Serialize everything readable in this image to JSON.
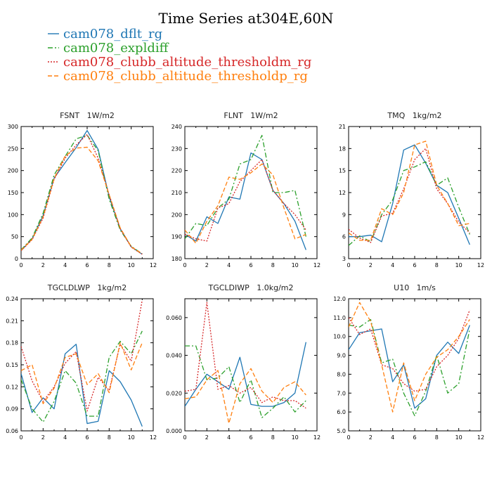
{
  "figure": {
    "title": "Time Series at304E,60N",
    "legend": [
      {
        "label": "cam078_dflt_rg",
        "color": "#1f77b4",
        "dash": "solid"
      },
      {
        "label": "cam078_expldiff",
        "color": "#2ca02c",
        "dash": "dashdot"
      },
      {
        "label": "cam078_clubb_altitude_thresholdm_rg",
        "color": "#d62728",
        "dash": "dotted"
      },
      {
        "label": "cam078_clubb_altitude_thresholdp_rg",
        "color": "#ff7f0e",
        "dash": "dashed"
      }
    ]
  },
  "chart_data": [
    {
      "type": "line",
      "title": "FSNT   1W/m2",
      "xlim": [
        0,
        12
      ],
      "xticks": [
        0,
        2,
        4,
        6,
        8,
        10,
        12
      ],
      "xtick_labels": [
        "0",
        "2",
        "4",
        "6",
        "8",
        "10",
        "12"
      ],
      "ylim": [
        0,
        300
      ],
      "yticks": [
        0,
        50,
        100,
        150,
        200,
        250,
        300
      ],
      "ytick_labels": [
        "0",
        "50",
        "100",
        "150",
        "200",
        "250",
        "300"
      ],
      "x": [
        0,
        1,
        2,
        3,
        4,
        5,
        6,
        7,
        8,
        9,
        10,
        11
      ],
      "series": [
        {
          "name": "cam078_dflt_rg",
          "values": [
            18,
            45,
            98,
            183,
            218,
            252,
            291,
            248,
            140,
            68,
            27,
            10
          ]
        },
        {
          "name": "cam078_expldiff",
          "values": [
            20,
            47,
            103,
            190,
            232,
            272,
            280,
            245,
            135,
            65,
            28,
            11
          ]
        },
        {
          "name": "cam078_clubb_altitude_thresholdm_rg",
          "values": [
            18,
            43,
            92,
            180,
            228,
            258,
            282,
            228,
            145,
            68,
            26,
            10
          ]
        },
        {
          "name": "cam078_clubb_altitude_thresholdp_rg",
          "values": [
            19,
            44,
            95,
            182,
            233,
            251,
            253,
            222,
            145,
            70,
            27,
            11
          ]
        }
      ]
    },
    {
      "type": "line",
      "title": "FLNT   1W/m2",
      "xlim": [
        0,
        12
      ],
      "xticks": [
        0,
        2,
        4,
        6,
        8,
        10,
        12
      ],
      "xtick_labels": [
        "0",
        "2",
        "4",
        "6",
        "8",
        "10",
        "12"
      ],
      "ylim": [
        180,
        240
      ],
      "yticks": [
        180,
        190,
        200,
        210,
        220,
        230,
        240
      ],
      "ytick_labels": [
        "180",
        "190",
        "200",
        "210",
        "220",
        "230",
        "240"
      ],
      "x": [
        0,
        1,
        2,
        3,
        4,
        5,
        6,
        7,
        8,
        9,
        10,
        11
      ],
      "series": [
        {
          "name": "cam078_dflt_rg",
          "values": [
            191,
            188,
            199,
            196,
            208,
            207,
            228,
            225,
            211,
            205,
            197,
            184
          ]
        },
        {
          "name": "cam078_expldiff",
          "values": [
            189,
            196,
            195,
            203,
            207,
            223,
            225,
            236,
            210,
            210,
            211,
            190
          ]
        },
        {
          "name": "cam078_clubb_altitude_thresholdm_rg",
          "values": [
            191,
            189,
            188,
            203,
            205,
            215,
            220,
            225,
            211,
            205,
            200,
            193
          ]
        },
        {
          "name": "cam078_clubb_altitude_thresholdp_rg",
          "values": [
            193,
            187,
            197,
            204,
            217,
            216,
            219,
            223,
            218,
            203,
            189,
            191
          ]
        }
      ]
    },
    {
      "type": "line",
      "title": "TMQ   1kg/m2",
      "xlim": [
        0,
        12
      ],
      "xticks": [
        0,
        2,
        4,
        6,
        8,
        10,
        12
      ],
      "xtick_labels": [
        "0",
        "2",
        "4",
        "6",
        "8",
        "10",
        "12"
      ],
      "ylim": [
        3,
        21
      ],
      "yticks": [
        3,
        6,
        9,
        12,
        15,
        18,
        21
      ],
      "ytick_labels": [
        "3",
        "6",
        "9",
        "12",
        "15",
        "18",
        "21"
      ],
      "x": [
        0,
        1,
        2,
        3,
        4,
        5,
        6,
        7,
        8,
        9,
        10,
        11
      ],
      "series": [
        {
          "name": "cam078_dflt_rg",
          "values": [
            6.0,
            6.0,
            6.2,
            5.3,
            10.5,
            17.8,
            18.5,
            16.0,
            13.0,
            12.0,
            8.5,
            4.9
          ]
        },
        {
          "name": "cam078_expldiff",
          "values": [
            4.8,
            6.1,
            5.3,
            9.0,
            11.0,
            15.0,
            15.5,
            16.2,
            13.0,
            14.0,
            10.0,
            6.3
          ]
        },
        {
          "name": "cam078_clubb_altitude_thresholdm_rg",
          "values": [
            7.0,
            5.8,
            5.2,
            8.8,
            9.2,
            12.5,
            16.5,
            18.0,
            12.5,
            10.5,
            8.0,
            6.5
          ]
        },
        {
          "name": "cam078_clubb_altitude_thresholdp_rg",
          "values": [
            6.5,
            5.5,
            5.5,
            9.8,
            9.0,
            12.0,
            18.5,
            19.0,
            13.0,
            10.5,
            7.5,
            7.8
          ]
        }
      ]
    },
    {
      "type": "line",
      "title": "TGCLDLWP   1kg/m2",
      "xlim": [
        0,
        12
      ],
      "xticks": [
        0,
        2,
        4,
        6,
        8,
        10,
        12
      ],
      "xtick_labels": [
        "0",
        "2",
        "4",
        "6",
        "8",
        "10",
        "12"
      ],
      "ylim": [
        0.06,
        0.24
      ],
      "yticks": [
        0.06,
        0.09,
        0.12,
        0.15,
        0.18,
        0.21,
        0.24
      ],
      "ytick_labels": [
        "0.06",
        "0.09",
        "0.12",
        "0.15",
        "0.18",
        "0.21",
        "0.24"
      ],
      "x": [
        0,
        1,
        2,
        3,
        4,
        5,
        6,
        7,
        8,
        9,
        10,
        11
      ],
      "series": [
        {
          "name": "cam078_dflt_rg",
          "values": [
            0.138,
            0.085,
            0.105,
            0.09,
            0.165,
            0.178,
            0.07,
            0.073,
            0.142,
            0.127,
            0.102,
            0.066
          ]
        },
        {
          "name": "cam078_expldiff",
          "values": [
            0.13,
            0.09,
            0.072,
            0.1,
            0.142,
            0.125,
            0.08,
            0.08,
            0.16,
            0.182,
            0.165,
            0.196
          ]
        },
        {
          "name": "cam078_clubb_altitude_thresholdm_rg",
          "values": [
            0.175,
            0.128,
            0.1,
            0.12,
            0.152,
            0.168,
            0.087,
            0.133,
            0.115,
            0.178,
            0.155,
            0.238
          ]
        },
        {
          "name": "cam078_clubb_altitude_thresholdp_rg",
          "values": [
            0.142,
            0.15,
            0.097,
            0.118,
            0.16,
            0.165,
            0.123,
            0.138,
            0.112,
            0.18,
            0.143,
            0.18
          ]
        }
      ]
    },
    {
      "type": "line",
      "title": "TGCLDIWP   1.0kg/m2",
      "xlim": [
        0,
        12
      ],
      "xticks": [
        0,
        2,
        4,
        6,
        8,
        10,
        12
      ],
      "xtick_labels": [
        "0",
        "2",
        "4",
        "6",
        "8",
        "10",
        "12"
      ],
      "ylim": [
        0,
        0.07
      ],
      "yticks": [
        0,
        0.02,
        0.04,
        0.06
      ],
      "ytick_labels": [
        "0.000",
        "0.020",
        "0.040",
        "0.060"
      ],
      "x": [
        0,
        1,
        2,
        3,
        4,
        5,
        6,
        7,
        8,
        9,
        10,
        11
      ],
      "series": [
        {
          "name": "cam078_dflt_rg",
          "values": [
            0.013,
            0.022,
            0.03,
            0.026,
            0.022,
            0.039,
            0.014,
            0.013,
            0.013,
            0.015,
            0.02,
            0.047
          ]
        },
        {
          "name": "cam078_expldiff",
          "values": [
            0.045,
            0.045,
            0.027,
            0.028,
            0.034,
            0.015,
            0.027,
            0.007,
            0.012,
            0.018,
            0.01,
            0.016
          ]
        },
        {
          "name": "cam078_clubb_altitude_thresholdm_rg",
          "values": [
            0.021,
            0.022,
            0.068,
            0.022,
            0.024,
            0.02,
            0.023,
            0.015,
            0.018,
            0.016,
            0.016,
            0.012
          ]
        },
        {
          "name": "cam078_clubb_altitude_thresholdp_rg",
          "values": [
            0.017,
            0.018,
            0.027,
            0.032,
            0.004,
            0.025,
            0.033,
            0.021,
            0.015,
            0.023,
            0.026,
            0.019
          ]
        }
      ]
    },
    {
      "type": "line",
      "title": "U10   1m/s",
      "xlim": [
        0,
        12
      ],
      "xticks": [
        0,
        2,
        4,
        6,
        8,
        10,
        12
      ],
      "xtick_labels": [
        "0",
        "2",
        "4",
        "6",
        "8",
        "10",
        "12"
      ],
      "ylim": [
        5.0,
        12.0
      ],
      "yticks": [
        5,
        6,
        7,
        8,
        9,
        10,
        11,
        12
      ],
      "ytick_labels": [
        "5.0",
        "6.0",
        "7.0",
        "8.0",
        "9.0",
        "10.0",
        "11.0",
        "12.0"
      ],
      "x": [
        0,
        1,
        2,
        3,
        4,
        5,
        6,
        7,
        8,
        9,
        10,
        11
      ],
      "series": [
        {
          "name": "cam078_dflt_rg",
          "values": [
            9.3,
            10.2,
            10.3,
            10.4,
            7.6,
            8.5,
            6.2,
            6.7,
            9.0,
            9.7,
            9.1,
            10.6
          ]
        },
        {
          "name": "cam078_expldiff",
          "values": [
            10.6,
            10.5,
            10.9,
            8.6,
            8.8,
            7.0,
            5.8,
            7.1,
            9.0,
            7.0,
            7.5,
            10.4
          ]
        },
        {
          "name": "cam078_clubb_altitude_thresholdm_rg",
          "values": [
            11.0,
            10.1,
            10.4,
            8.5,
            8.3,
            7.5,
            7.1,
            7.2,
            8.4,
            9.0,
            9.9,
            11.4
          ]
        },
        {
          "name": "cam078_clubb_altitude_thresholdp_rg",
          "values": [
            10.5,
            11.8,
            10.8,
            8.5,
            6.0,
            8.6,
            6.6,
            8.0,
            8.9,
            9.3,
            10.0,
            10.9
          ]
        }
      ]
    }
  ]
}
